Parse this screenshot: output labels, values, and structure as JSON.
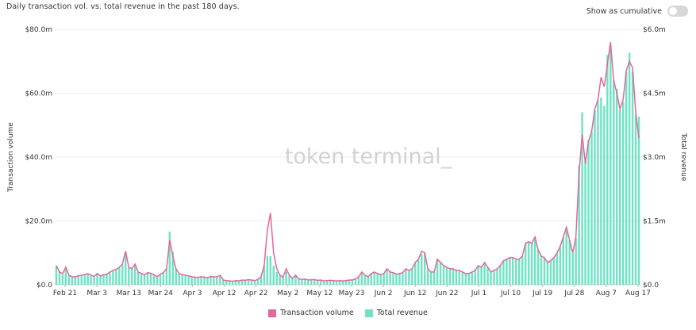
{
  "header": {
    "subtitle": "Daily transaction vol. vs. total revenue in the past 180 days.",
    "toggle_label": "Show as cumulative",
    "toggle_on": false
  },
  "watermark": "token terminal_",
  "colors": {
    "line": "#e4669b",
    "bar": "#6fe3c4",
    "grid": "#eeeeee",
    "text": "#333333"
  },
  "chart_data": {
    "type": "bar",
    "xlabel": "",
    "ylabel": "Transaction volume",
    "y2label": "Total revenue",
    "ylim": [
      0,
      80
    ],
    "y2lim": [
      0,
      6
    ],
    "yticks": [
      "$0.0",
      "$20.0m",
      "$40.0m",
      "$60.0m",
      "$80.0m"
    ],
    "y2ticks": [
      "$0.0",
      "$1.5m",
      "$3.0m",
      "$4.5m",
      "$6.0m"
    ],
    "x_ticks": [
      "Feb 21",
      "Mar 3",
      "Mar 13",
      "Mar 24",
      "Apr 3",
      "Apr 12",
      "Apr 22",
      "May 2",
      "May 12",
      "May 23",
      "Jun 2",
      "Jun 12",
      "Jun 22",
      "Jul 1",
      "Jul 10",
      "Jul 19",
      "Jul 28",
      "Aug 7",
      "Aug 17"
    ],
    "grid": true,
    "legend_position": "bottom-center",
    "series": [
      {
        "name": "Transaction volume",
        "kind": "line",
        "axis": "left",
        "unit": "$m",
        "values": [
          6,
          4,
          3.5,
          5.5,
          3,
          2.5,
          2.5,
          2.8,
          3,
          3.2,
          3.5,
          3,
          2.6,
          3.5,
          2.7,
          3.2,
          3.3,
          4,
          4.5,
          4.8,
          5.5,
          6.5,
          10.5,
          5.5,
          5,
          6.5,
          4,
          3.6,
          3.1,
          3.8,
          3.6,
          3.2,
          2.5,
          3.3,
          3.8,
          5,
          14,
          9,
          5,
          3.5,
          3.2,
          3,
          2.8,
          2.5,
          2.4,
          2.3,
          2.5,
          2.4,
          2.2,
          2.6,
          2.5,
          2.5,
          3,
          1.5,
          1.3,
          1.2,
          1.1,
          1.3,
          1.2,
          1.5,
          1.4,
          1.6,
          1.5,
          1.3,
          1.7,
          2.5,
          6,
          17,
          22.5,
          10,
          5,
          3,
          2.4,
          5,
          3,
          2,
          3,
          1.8,
          1.7,
          1.8,
          1.5,
          1.6,
          1.6,
          1.4,
          1.5,
          1.2,
          1.3,
          1.4,
          1.3,
          1.2,
          1.3,
          1.2,
          1.3,
          1.5,
          1.5,
          1.8,
          2.5,
          4,
          3,
          2.5,
          3.5,
          4,
          3.5,
          3.2,
          3.5,
          5,
          4,
          3.8,
          3.3,
          3.5,
          3.8,
          5,
          4.5,
          5,
          7,
          8,
          10.5,
          10,
          5,
          4,
          4,
          8,
          7,
          6,
          5.5,
          5,
          5,
          4.5,
          4.5,
          4,
          3.5,
          3.5,
          4,
          4.5,
          6,
          5.5,
          7,
          5.5,
          4,
          4.5,
          5,
          6,
          7.5,
          8,
          8.5,
          8.5,
          8,
          8,
          9,
          13,
          13.5,
          13,
          15,
          11,
          9,
          8.5,
          7,
          7.5,
          8.5,
          10,
          12,
          15,
          18,
          14,
          10,
          15,
          35,
          47,
          38,
          45,
          48,
          55,
          58,
          65,
          62,
          69,
          76,
          64,
          60,
          55,
          58,
          67,
          70,
          68,
          54,
          46
        ],
        "y2values": [
          0.45,
          0.32,
          0.25,
          0.42,
          0.22,
          0.2,
          0.18,
          0.2,
          0.22,
          0.25,
          0.27,
          0.22,
          0.2,
          0.27,
          0.2,
          0.25,
          0.25,
          0.3,
          0.33,
          0.35,
          0.4,
          0.48,
          0.78,
          0.4,
          0.38,
          0.48,
          0.3,
          0.27,
          0.23,
          0.28,
          0.27,
          0.24,
          0.18,
          0.25,
          0.28,
          0.38,
          1.25,
          0.78,
          0.38,
          0.26,
          0.24,
          0.22,
          0.2,
          0.18,
          0.18,
          0.17,
          0.18,
          0.18,
          0.16,
          0.2,
          0.18,
          0.19,
          0.22,
          0.11,
          0.1,
          0.09,
          0.08,
          0.1,
          0.09,
          0.11,
          0.1,
          0.12,
          0.11,
          0.1,
          0.13,
          0.19,
          0.45,
          0.68,
          0.67,
          0.45,
          0.3,
          0.22,
          0.18,
          0.3,
          0.22,
          0.15,
          0.22,
          0.13,
          0.13,
          0.13,
          0.11,
          0.12,
          0.12,
          0.1,
          0.11,
          0.09,
          0.1,
          0.1,
          0.1,
          0.09,
          0.1,
          0.09,
          0.1,
          0.11,
          0.11,
          0.13,
          0.19,
          0.3,
          0.22,
          0.19,
          0.26,
          0.3,
          0.26,
          0.24,
          0.26,
          0.38,
          0.3,
          0.28,
          0.25,
          0.26,
          0.28,
          0.38,
          0.34,
          0.38,
          0.52,
          0.6,
          0.72,
          0.75,
          0.38,
          0.3,
          0.3,
          0.6,
          0.52,
          0.45,
          0.41,
          0.38,
          0.38,
          0.34,
          0.34,
          0.3,
          0.26,
          0.26,
          0.3,
          0.34,
          0.45,
          0.41,
          0.52,
          0.41,
          0.3,
          0.34,
          0.38,
          0.45,
          0.56,
          0.6,
          0.64,
          0.64,
          0.6,
          0.6,
          0.68,
          0.98,
          1.0,
          0.98,
          1.12,
          0.82,
          0.68,
          0.64,
          0.52,
          0.56,
          0.64,
          0.75,
          0.9,
          1.12,
          1.35,
          1.05,
          0.75,
          1.1,
          2.8,
          4.05,
          2.9,
          3.4,
          3.6,
          4.1,
          4.35,
          4.4,
          4.2,
          5.4,
          5.6,
          4.8,
          4.6,
          4.1,
          4.3,
          5.0,
          5.45,
          5.0,
          4.0,
          3.95
        ]
      },
      {
        "name": "Total revenue",
        "kind": "bar",
        "axis": "right",
        "unit": "$m"
      }
    ]
  }
}
